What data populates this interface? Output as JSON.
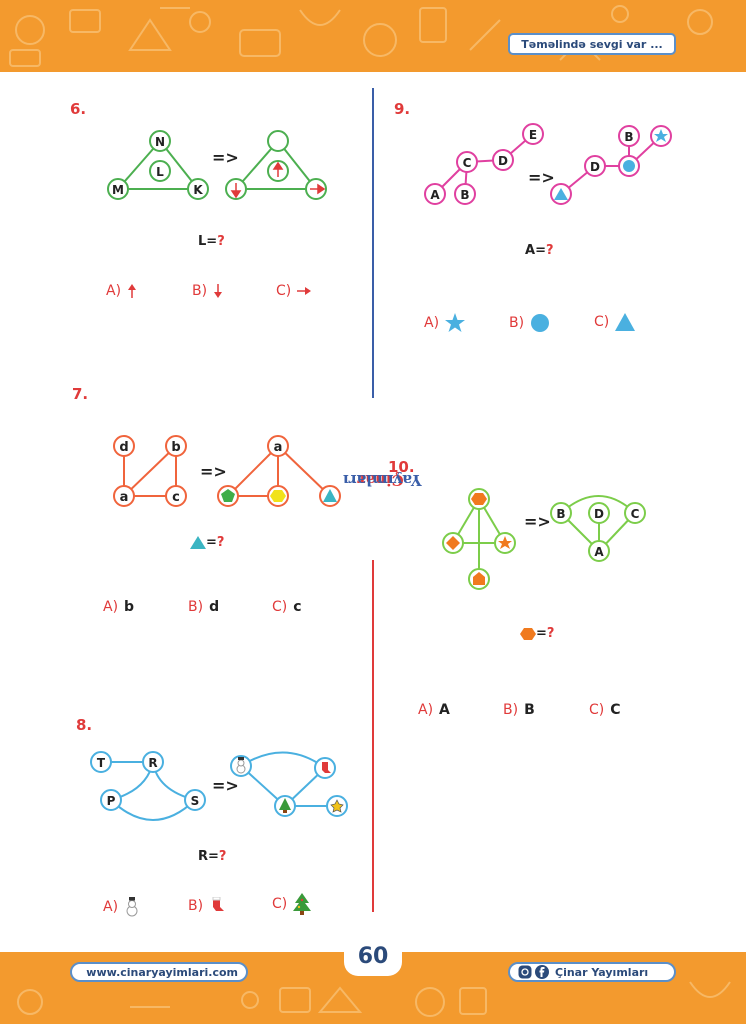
{
  "header": {
    "title": "Təməlində sevgi var ..."
  },
  "footer": {
    "website": "www.cinaryayimlari.com",
    "social": "Çinar Yayımları",
    "page_number": "60"
  },
  "brand_vertical": {
    "word1": "Çinar",
    "word2": "Yayımları"
  },
  "colors": {
    "orange": "#f39a2e",
    "red": "#e03a3a",
    "navy": "#2b4a7a",
    "green": "#4caf50",
    "pink": "#e040a0",
    "blue": "#4ab0e0",
    "orange_line": "#f0643c",
    "lime": "#7ccd4a"
  },
  "arrow": "=>",
  "questions": [
    {
      "number": "6.",
      "left_nodes": [
        "N",
        "L",
        "M",
        "K"
      ],
      "right_icons": [
        "empty-circle",
        "up-arrow-icon",
        "down-arrow-icon",
        "right-arrow-icon"
      ],
      "equation_label": "L",
      "equation_sign": "=",
      "equation_q": "?",
      "options": [
        {
          "letter": "A)",
          "icon": "up-arrow-icon"
        },
        {
          "letter": "B)",
          "icon": "down-arrow-icon"
        },
        {
          "letter": "C)",
          "icon": "right-arrow-icon"
        }
      ]
    },
    {
      "number": "7.",
      "left_nodes": [
        "d",
        "b",
        "a",
        "c"
      ],
      "right_top": "a",
      "right_icons": [
        "pentagon-icon",
        "hexagon-icon",
        "triangle-icon"
      ],
      "equation_icon": "triangle-icon",
      "equation_sign": "=",
      "equation_q": "?",
      "options": [
        {
          "letter": "A)",
          "value": "b"
        },
        {
          "letter": "B)",
          "value": "d"
        },
        {
          "letter": "C)",
          "value": "c"
        }
      ]
    },
    {
      "number": "8.",
      "left_nodes": [
        "T",
        "R",
        "P",
        "S"
      ],
      "right_icons": [
        "snowman-icon",
        "stocking-icon",
        "tree-icon",
        "star-icon"
      ],
      "equation_label": "R",
      "equation_sign": "=",
      "equation_q": "?",
      "options": [
        {
          "letter": "A)",
          "icon": "snowman-icon"
        },
        {
          "letter": "B)",
          "icon": "stocking-icon"
        },
        {
          "letter": "C)",
          "icon": "tree-icon"
        }
      ]
    },
    {
      "number": "9.",
      "left_nodes": [
        "E",
        "C",
        "D",
        "A",
        "B"
      ],
      "right_nodes": [
        "B",
        "D"
      ],
      "right_icons": [
        "star-icon",
        "circle-icon",
        "triangle-icon"
      ],
      "equation_label": "A",
      "equation_sign": "=",
      "equation_q": "?",
      "options": [
        {
          "letter": "A)",
          "icon": "star-icon"
        },
        {
          "letter": "B)",
          "icon": "circle-icon"
        },
        {
          "letter": "C)",
          "icon": "triangle-icon"
        }
      ]
    },
    {
      "number": "10.",
      "left_icons": [
        "hexagon-icon",
        "diamond-icon",
        "star-icon",
        "house-pentagon-icon"
      ],
      "right_nodes": [
        "B",
        "D",
        "C",
        "A"
      ],
      "equation_icon": "hexagon-icon",
      "equation_sign": "=",
      "equation_q": "?",
      "options": [
        {
          "letter": "A)",
          "value": "A"
        },
        {
          "letter": "B)",
          "value": "B"
        },
        {
          "letter": "C)",
          "value": "C"
        }
      ]
    }
  ]
}
